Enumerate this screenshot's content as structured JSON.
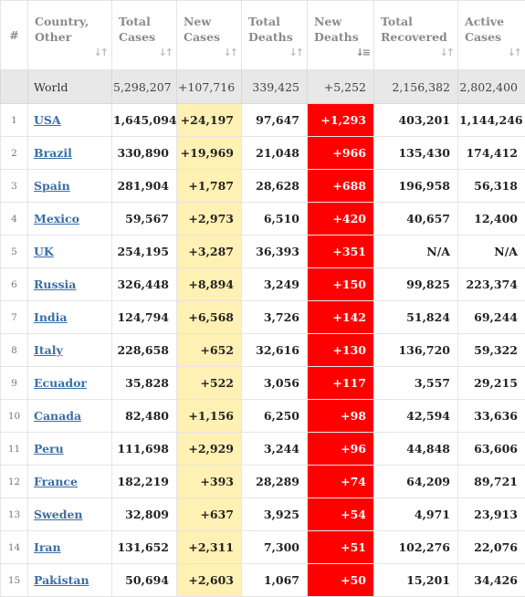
{
  "headers": {
    "num": "#",
    "country": [
      "Country,",
      "Other"
    ],
    "total_cases": [
      "Total",
      "Cases"
    ],
    "new_cases": [
      "New",
      "Cases"
    ],
    "total_deaths": [
      "Total",
      "Deaths"
    ],
    "new_deaths": [
      "New",
      "Deaths"
    ],
    "total_recovered": [
      "Total",
      "Recovered"
    ],
    "active_cases": [
      "Active",
      "Cases"
    ]
  },
  "icons": {
    "sort": "sort-arrows-icon",
    "sort_active": "sort-desc-icon"
  },
  "colors": {
    "new_cases_bg": "#fff0b3",
    "new_deaths_bg": "#ff0000",
    "link": "#3a6ea5",
    "world_row_bg": "#e8e8e8"
  },
  "world": {
    "country": "World",
    "total_cases": "5,298,207",
    "new_cases": "+107,716",
    "total_deaths": "339,425",
    "new_deaths": "+5,252",
    "total_recovered": "2,156,382",
    "active_cases": "2,802,400"
  },
  "rows": [
    {
      "num": "1",
      "country": "USA",
      "total_cases": "1,645,094",
      "new_cases": "+24,197",
      "total_deaths": "97,647",
      "new_deaths": "+1,293",
      "total_recovered": "403,201",
      "active_cases": "1,144,246"
    },
    {
      "num": "2",
      "country": "Brazil",
      "total_cases": "330,890",
      "new_cases": "+19,969",
      "total_deaths": "21,048",
      "new_deaths": "+966",
      "total_recovered": "135,430",
      "active_cases": "174,412"
    },
    {
      "num": "3",
      "country": "Spain",
      "total_cases": "281,904",
      "new_cases": "+1,787",
      "total_deaths": "28,628",
      "new_deaths": "+688",
      "total_recovered": "196,958",
      "active_cases": "56,318"
    },
    {
      "num": "4",
      "country": "Mexico",
      "total_cases": "59,567",
      "new_cases": "+2,973",
      "total_deaths": "6,510",
      "new_deaths": "+420",
      "total_recovered": "40,657",
      "active_cases": "12,400"
    },
    {
      "num": "5",
      "country": "UK",
      "total_cases": "254,195",
      "new_cases": "+3,287",
      "total_deaths": "36,393",
      "new_deaths": "+351",
      "total_recovered": "N/A",
      "active_cases": "N/A"
    },
    {
      "num": "6",
      "country": "Russia",
      "total_cases": "326,448",
      "new_cases": "+8,894",
      "total_deaths": "3,249",
      "new_deaths": "+150",
      "total_recovered": "99,825",
      "active_cases": "223,374"
    },
    {
      "num": "7",
      "country": "India",
      "total_cases": "124,794",
      "new_cases": "+6,568",
      "total_deaths": "3,726",
      "new_deaths": "+142",
      "total_recovered": "51,824",
      "active_cases": "69,244"
    },
    {
      "num": "8",
      "country": "Italy",
      "total_cases": "228,658",
      "new_cases": "+652",
      "total_deaths": "32,616",
      "new_deaths": "+130",
      "total_recovered": "136,720",
      "active_cases": "59,322"
    },
    {
      "num": "9",
      "country": "Ecuador",
      "total_cases": "35,828",
      "new_cases": "+522",
      "total_deaths": "3,056",
      "new_deaths": "+117",
      "total_recovered": "3,557",
      "active_cases": "29,215"
    },
    {
      "num": "10",
      "country": "Canada",
      "total_cases": "82,480",
      "new_cases": "+1,156",
      "total_deaths": "6,250",
      "new_deaths": "+98",
      "total_recovered": "42,594",
      "active_cases": "33,636"
    },
    {
      "num": "11",
      "country": "Peru",
      "total_cases": "111,698",
      "new_cases": "+2,929",
      "total_deaths": "3,244",
      "new_deaths": "+96",
      "total_recovered": "44,848",
      "active_cases": "63,606"
    },
    {
      "num": "12",
      "country": "France",
      "total_cases": "182,219",
      "new_cases": "+393",
      "total_deaths": "28,289",
      "new_deaths": "+74",
      "total_recovered": "64,209",
      "active_cases": "89,721"
    },
    {
      "num": "13",
      "country": "Sweden",
      "total_cases": "32,809",
      "new_cases": "+637",
      "total_deaths": "3,925",
      "new_deaths": "+54",
      "total_recovered": "4,971",
      "active_cases": "23,913"
    },
    {
      "num": "14",
      "country": "Iran",
      "total_cases": "131,652",
      "new_cases": "+2,311",
      "total_deaths": "7,300",
      "new_deaths": "+51",
      "total_recovered": "102,276",
      "active_cases": "22,076"
    },
    {
      "num": "15",
      "country": "Pakistan",
      "total_cases": "50,694",
      "new_cases": "+2,603",
      "total_deaths": "1,067",
      "new_deaths": "+50",
      "total_recovered": "15,201",
      "active_cases": "34,426"
    }
  ]
}
